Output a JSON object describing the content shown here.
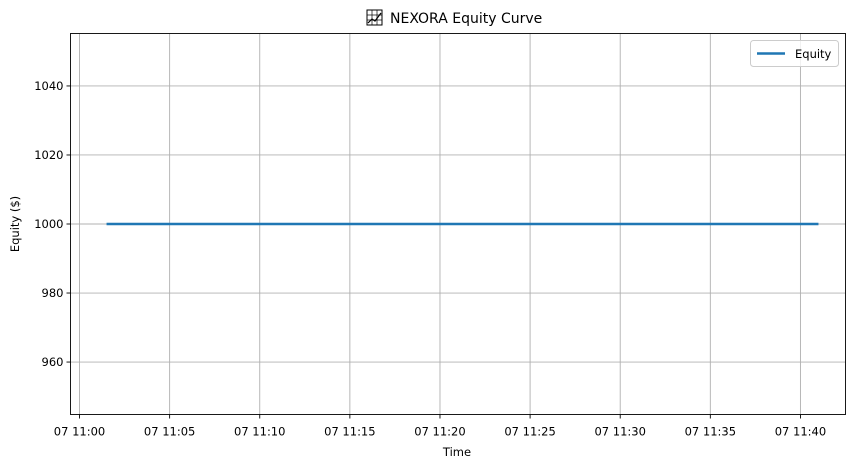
{
  "chart_data": {
    "type": "line",
    "title": "NEXORA Equity Curve",
    "title_icon": "chart-icon",
    "xlabel": "Time",
    "ylabel": "Equity ($)",
    "x_minutes_range": [
      -0.5,
      42.5
    ],
    "ylim": [
      944.8,
      1055.2
    ],
    "x_tick_labels": [
      "07 11:00",
      "07 11:05",
      "07 11:10",
      "07 11:15",
      "07 11:20",
      "07 11:25",
      "07 11:30",
      "07 11:35",
      "07 11:40"
    ],
    "x_tick_minutes": [
      0,
      5,
      10,
      15,
      20,
      25,
      30,
      35,
      40
    ],
    "y_ticks": [
      960,
      980,
      1000,
      1020,
      1040
    ],
    "grid": true,
    "legend_position": "top-right",
    "series": [
      {
        "name": "Equity",
        "color": "#1f77b4",
        "x": [
          "07 11:01:30",
          "07 11:41:00"
        ],
        "x_minutes": [
          1.5,
          41
        ],
        "values": [
          1000,
          1000
        ]
      }
    ]
  }
}
